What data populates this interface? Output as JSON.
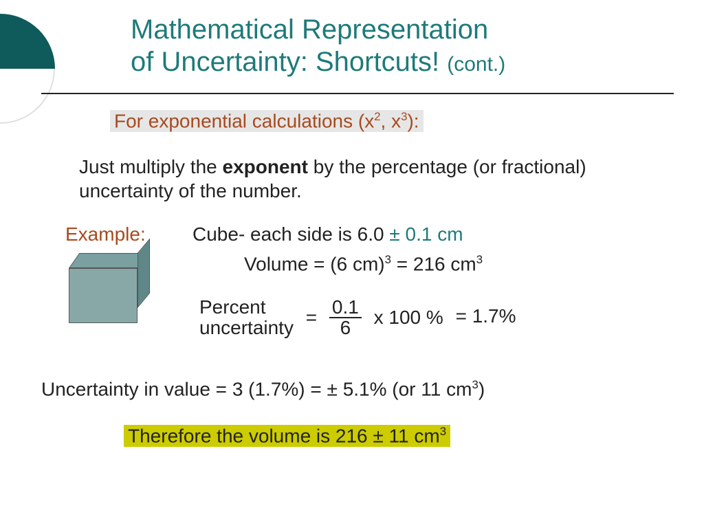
{
  "colors": {
    "accent_teal": "#1f7a7a",
    "accent_orange": "#a84a1f",
    "highlight_gray": "#e6e6e6",
    "highlight_yellow": "#cccc00",
    "circle_fill": "#0f5a5a",
    "cube_front": "#88a8a8",
    "cube_top": "#7aa0a0",
    "cube_side": "#5f8787",
    "text": "#222222",
    "background": "#ffffff"
  },
  "typography": {
    "title_fontsize": 40,
    "cont_fontsize": 30,
    "body_fontsize": 28,
    "font_family": "Verdana"
  },
  "title": {
    "line1": "Mathematical  Representation",
    "line2_main": "of Uncertainty: Shortcuts!",
    "cont": "(cont.)"
  },
  "heading": {
    "prefix": "For exponential calculations (x",
    "sup1": "2",
    "mid": ", x",
    "sup2": "3",
    "suffix": "):"
  },
  "body": {
    "pre": "Just multiply the ",
    "bold": "exponent",
    "post": " by the percentage (or fractional) uncertainty of the number."
  },
  "example_label": "Example:",
  "cube_desc": {
    "part1": "Cube- each side is 6.0 ",
    "pm": "±",
    "part2": " 0.1 cm"
  },
  "volume": {
    "prefix": "Volume = (6 cm)",
    "sup1": "3",
    "mid": " = 216 cm",
    "sup2": "3"
  },
  "percent": {
    "label_l1": "Percent",
    "label_l2": "uncertainty",
    "numerator": "0.1",
    "denominator": "6",
    "tail": "x 100 %",
    "result": " = 1.7%"
  },
  "uncertainty_line": {
    "prefix": "Uncertainty in value  = 3 (1.7%) = ± 5.1% (or 11 cm",
    "sup": "3",
    "suffix": ")"
  },
  "therefore": {
    "prefix": "Therefore the volume is 216 ± 11 cm",
    "sup": "3"
  }
}
